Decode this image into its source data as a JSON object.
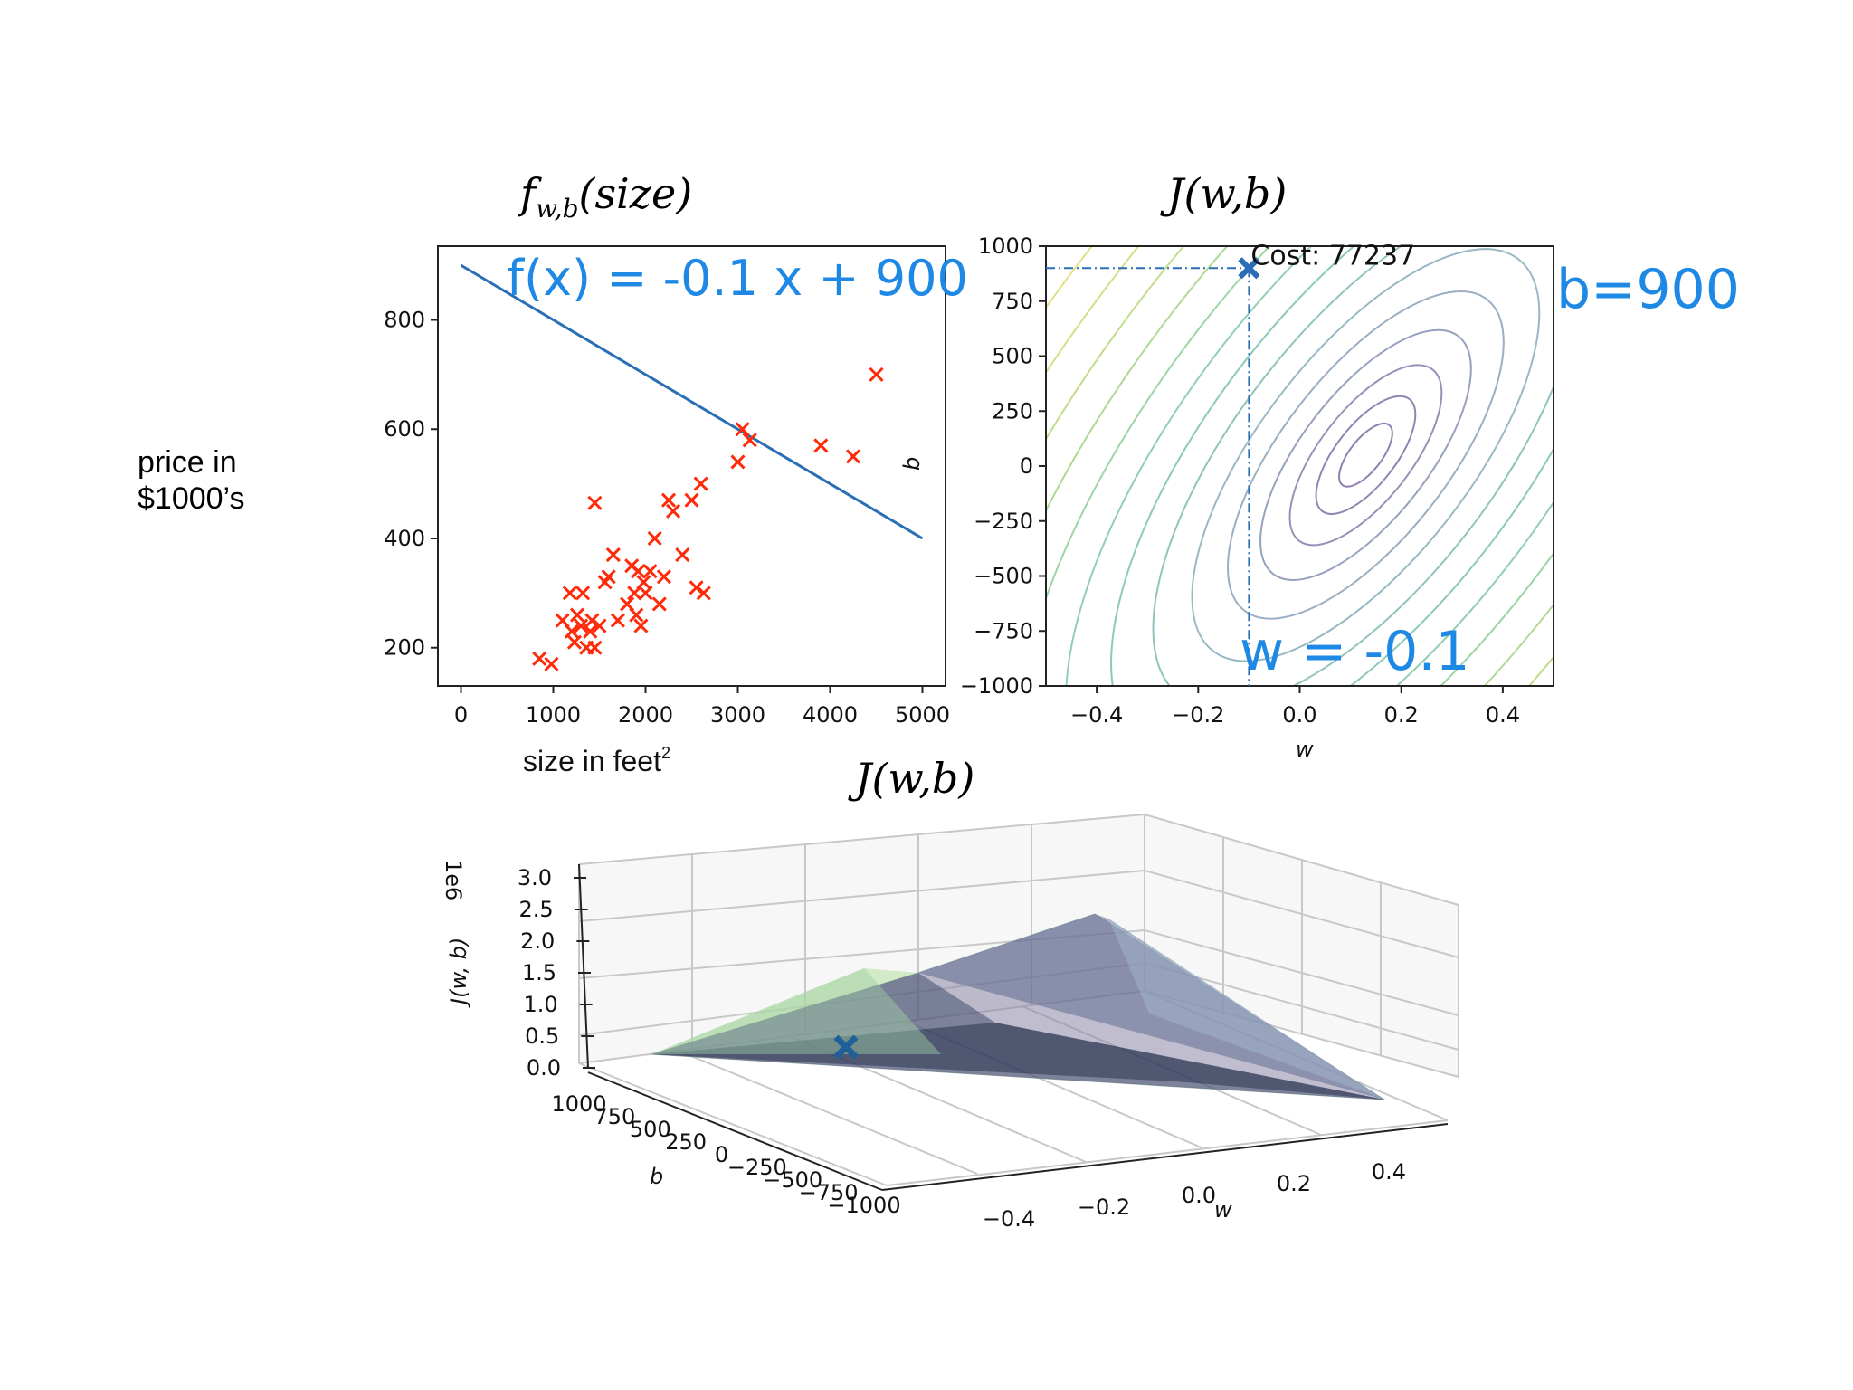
{
  "side_label": {
    "line1": "price in",
    "line2": "$1000’s"
  },
  "annotations": {
    "fx": "f(x) = -0.1 x + 900",
    "b": "b=900",
    "w": "w = -0.1"
  },
  "chart_data": [
    {
      "type": "scatter",
      "title": "f_w,b(size)",
      "title_main": "f",
      "title_sub": "w,b",
      "title_rest": "(size)",
      "xlabel": "size in feet",
      "xlabel_sup": "2",
      "ylabel": "",
      "xlim": [
        -250,
        5250
      ],
      "ylim": [
        130,
        935
      ],
      "xticks": [
        0,
        1000,
        2000,
        3000,
        4000,
        5000
      ],
      "yticks": [
        200,
        400,
        600,
        800
      ],
      "marker_color": "#ff2a0a",
      "line_color": "#2a6fb5",
      "points": [
        [
          850,
          180
        ],
        [
          980,
          170
        ],
        [
          1100,
          250
        ],
        [
          1180,
          300
        ],
        [
          1200,
          230
        ],
        [
          1230,
          210
        ],
        [
          1260,
          260
        ],
        [
          1300,
          240
        ],
        [
          1320,
          300
        ],
        [
          1360,
          200
        ],
        [
          1400,
          230
        ],
        [
          1420,
          250
        ],
        [
          1450,
          465
        ],
        [
          1450,
          200
        ],
        [
          1500,
          240
        ],
        [
          1560,
          320
        ],
        [
          1600,
          330
        ],
        [
          1650,
          370
        ],
        [
          1700,
          250
        ],
        [
          1800,
          280
        ],
        [
          1850,
          350
        ],
        [
          1880,
          300
        ],
        [
          1900,
          260
        ],
        [
          1920,
          340
        ],
        [
          1950,
          240
        ],
        [
          1980,
          320
        ],
        [
          2000,
          300
        ],
        [
          2050,
          340
        ],
        [
          2100,
          400
        ],
        [
          2150,
          280
        ],
        [
          2200,
          330
        ],
        [
          2250,
          470
        ],
        [
          2300,
          450
        ],
        [
          2400,
          370
        ],
        [
          2500,
          470
        ],
        [
          2550,
          310
        ],
        [
          2600,
          500
        ],
        [
          2630,
          300
        ],
        [
          3000,
          540
        ],
        [
          3050,
          600
        ],
        [
          3130,
          580
        ],
        [
          3900,
          570
        ],
        [
          4250,
          550
        ],
        [
          4500,
          700
        ]
      ],
      "line": {
        "w": -0.1,
        "b": 900,
        "x_range": [
          0,
          5000
        ]
      }
    },
    {
      "type": "contour",
      "title": "J(w,b)",
      "xlabel": "w",
      "ylabel": "b",
      "xlim": [
        -0.5,
        0.5
      ],
      "ylim": [
        -1000,
        1000
      ],
      "xticks": [
        -0.4,
        -0.2,
        0.0,
        0.2,
        0.4
      ],
      "yticks": [
        1000,
        750,
        500,
        250,
        0,
        -250,
        -500,
        -750,
        -1000
      ],
      "center": {
        "w": 0.13,
        "b": 50
      },
      "current": {
        "w": -0.1,
        "b": 900
      },
      "cost_label": "Cost: 77237",
      "marker_color": "#2a6fb5"
    },
    {
      "type": "surface",
      "title": "J(w,b)",
      "zlabel": "J(w, b)",
      "zscale": "1e6",
      "zticks": [
        "3.0",
        "2.5",
        "2.0",
        "1.5",
        "1.0",
        "0.5",
        "0.0"
      ],
      "wticks": [
        "-0.4",
        "-0.2",
        "0.0",
        "0.2",
        "0.4"
      ],
      "wlabel": "w",
      "bticks": [
        "1000",
        "750",
        "500",
        "250",
        "0",
        "-250",
        "-500",
        "-750",
        "-1000"
      ],
      "blabel": "b",
      "marker_color": "#1f5f9a"
    }
  ]
}
